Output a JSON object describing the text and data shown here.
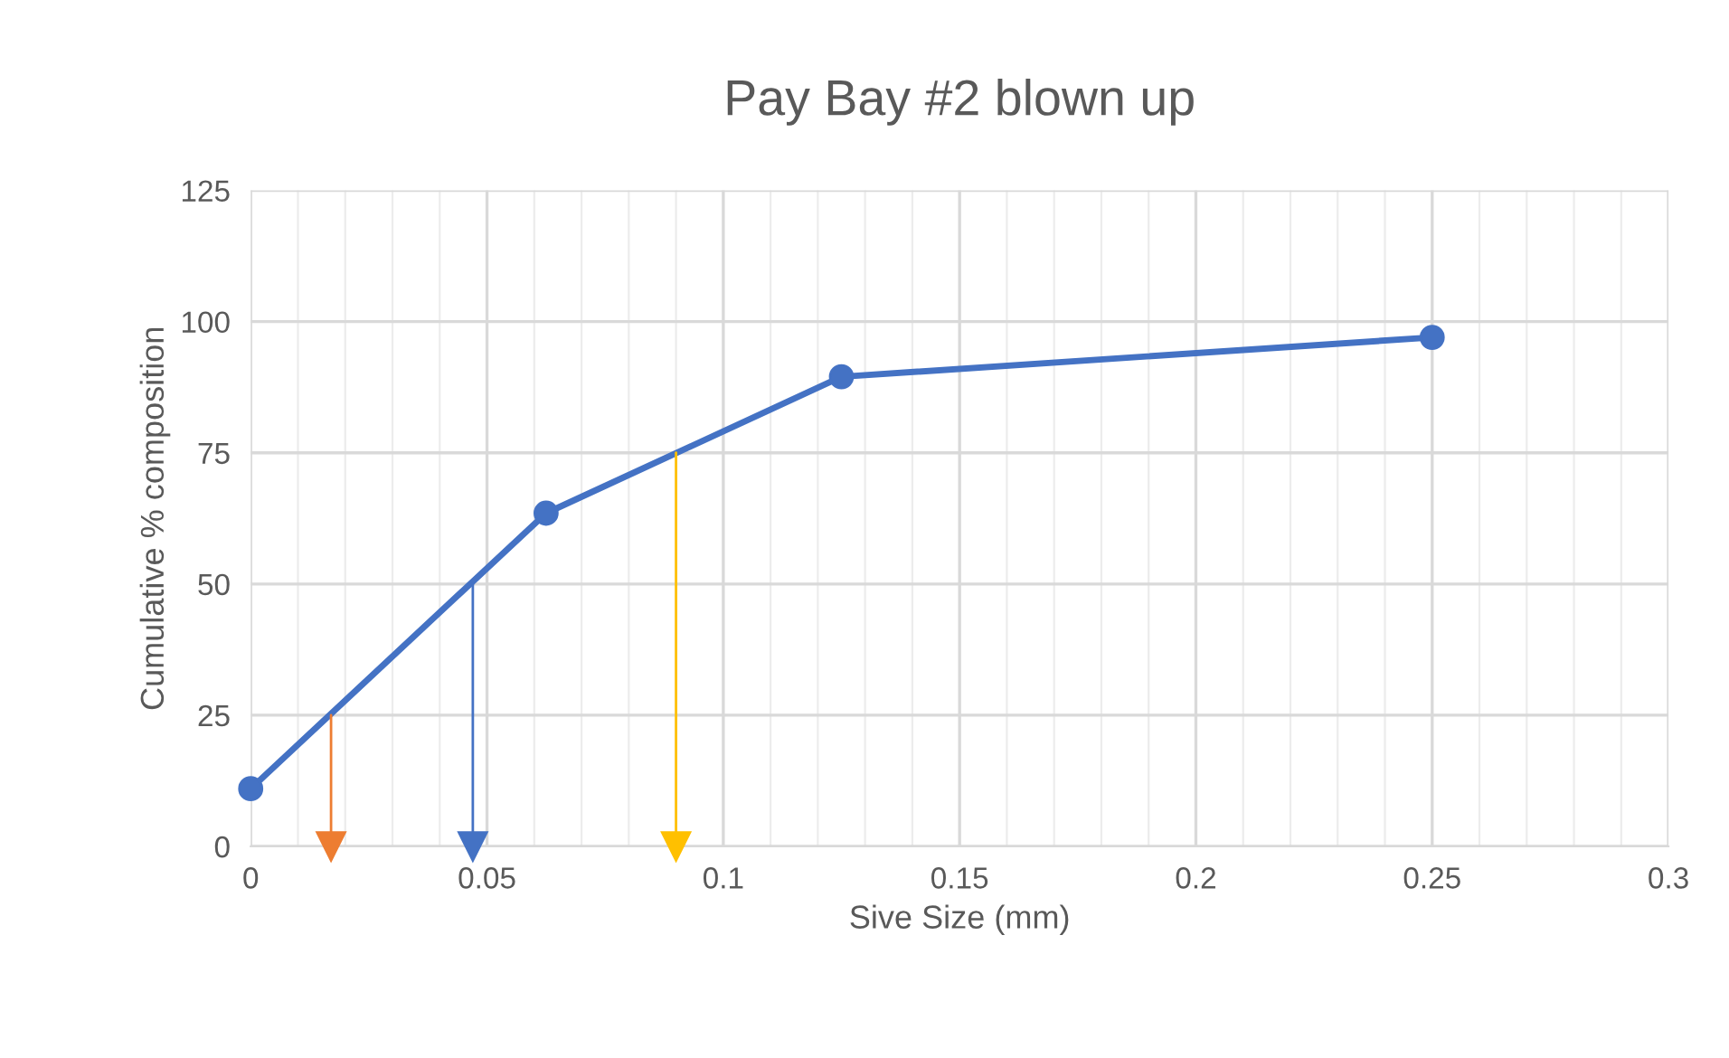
{
  "chart_data": {
    "type": "line",
    "title": "Pay Bay #2 blown up",
    "xlabel": "Sive Size (mm)",
    "ylabel": "Cumulative % composition",
    "series": [
      {
        "x": [
          0,
          0.0625,
          0.125,
          0.25
        ],
        "values": [
          11,
          63.5,
          89.5,
          97
        ],
        "color": "#4472c4",
        "marker": "circle"
      },
      {
        "x": [
          0.017,
          0.017
        ],
        "values": [
          25,
          0
        ],
        "color": "#ed7d31",
        "marker": "triangle"
      },
      {
        "x": [
          0.047,
          0.047
        ],
        "values": [
          50,
          0
        ],
        "color": "#4472c4",
        "marker": "triangle"
      },
      {
        "x": [
          0.09,
          0.09
        ],
        "values": [
          75,
          0
        ],
        "color": "#ffc000",
        "marker": "triangle"
      }
    ],
    "xlim": [
      0,
      0.3
    ],
    "xticks": [
      0,
      0.05,
      0.1,
      0.15,
      0.2,
      0.25,
      0.3
    ],
    "ylim": [
      0,
      125
    ],
    "yticks": [
      0,
      25,
      50,
      75,
      100,
      125
    ],
    "grid": true,
    "legend": false
  }
}
